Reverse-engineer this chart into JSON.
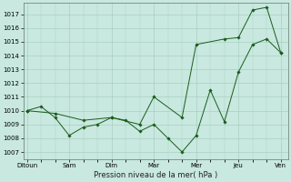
{
  "xlabel": "Pression niveau de la mer( hPa )",
  "background_color": "#c8e8e0",
  "plot_bg_color": "#c8e8e0",
  "grid_color": "#a0c8b8",
  "line_color": "#1a5c1a",
  "marker_color": "#1a5c1a",
  "x_tick_labels": [
    "Ditoun",
    "Sam",
    "Dim",
    "Mar",
    "Mer",
    "Jeu",
    "Ven"
  ],
  "x_tick_positions": [
    0,
    24,
    48,
    72,
    96,
    120,
    144
  ],
  "ylim": [
    1006.5,
    1017.8
  ],
  "yticks": [
    1007,
    1008,
    1009,
    1010,
    1011,
    1012,
    1013,
    1014,
    1015,
    1016,
    1017
  ],
  "line1_x": [
    0,
    8,
    16,
    24,
    32,
    40,
    48,
    56,
    64,
    72,
    80,
    88,
    96,
    104,
    112,
    120,
    128,
    136,
    144
  ],
  "line1_y": [
    1010.0,
    1010.3,
    1009.5,
    1008.2,
    1008.8,
    1009.0,
    1009.5,
    1009.3,
    1008.5,
    1009.0,
    1008.0,
    1007.0,
    1008.2,
    1011.5,
    1009.2,
    1012.8,
    1014.8,
    1015.2,
    1014.2
  ],
  "line2_x": [
    0,
    16,
    32,
    48,
    64,
    72,
    88,
    96,
    112,
    120,
    128,
    136,
    144
  ],
  "line2_y": [
    1010.0,
    1009.8,
    1009.3,
    1009.5,
    1009.0,
    1011.0,
    1009.5,
    1014.8,
    1015.2,
    1015.3,
    1017.3,
    1017.5,
    1014.2
  ]
}
